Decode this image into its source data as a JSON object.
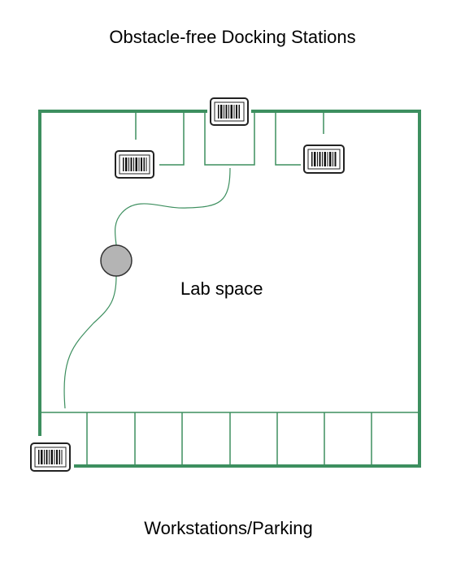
{
  "title": "Obstacle-free Docking Stations",
  "room_label": "Lab space",
  "footer_label": "Workstations/Parking",
  "colors": {
    "wall": "#3d8f5f",
    "dividers": "#3d8f5f",
    "path": "#3d8f5f",
    "robot_fill": "#b4b4b4",
    "robot_stroke": "#333333",
    "marker_stroke": "#222222"
  },
  "icons": {
    "docking_marker": "barcode-icon",
    "robot": "robot-icon"
  },
  "parking_slot_count": 8
}
